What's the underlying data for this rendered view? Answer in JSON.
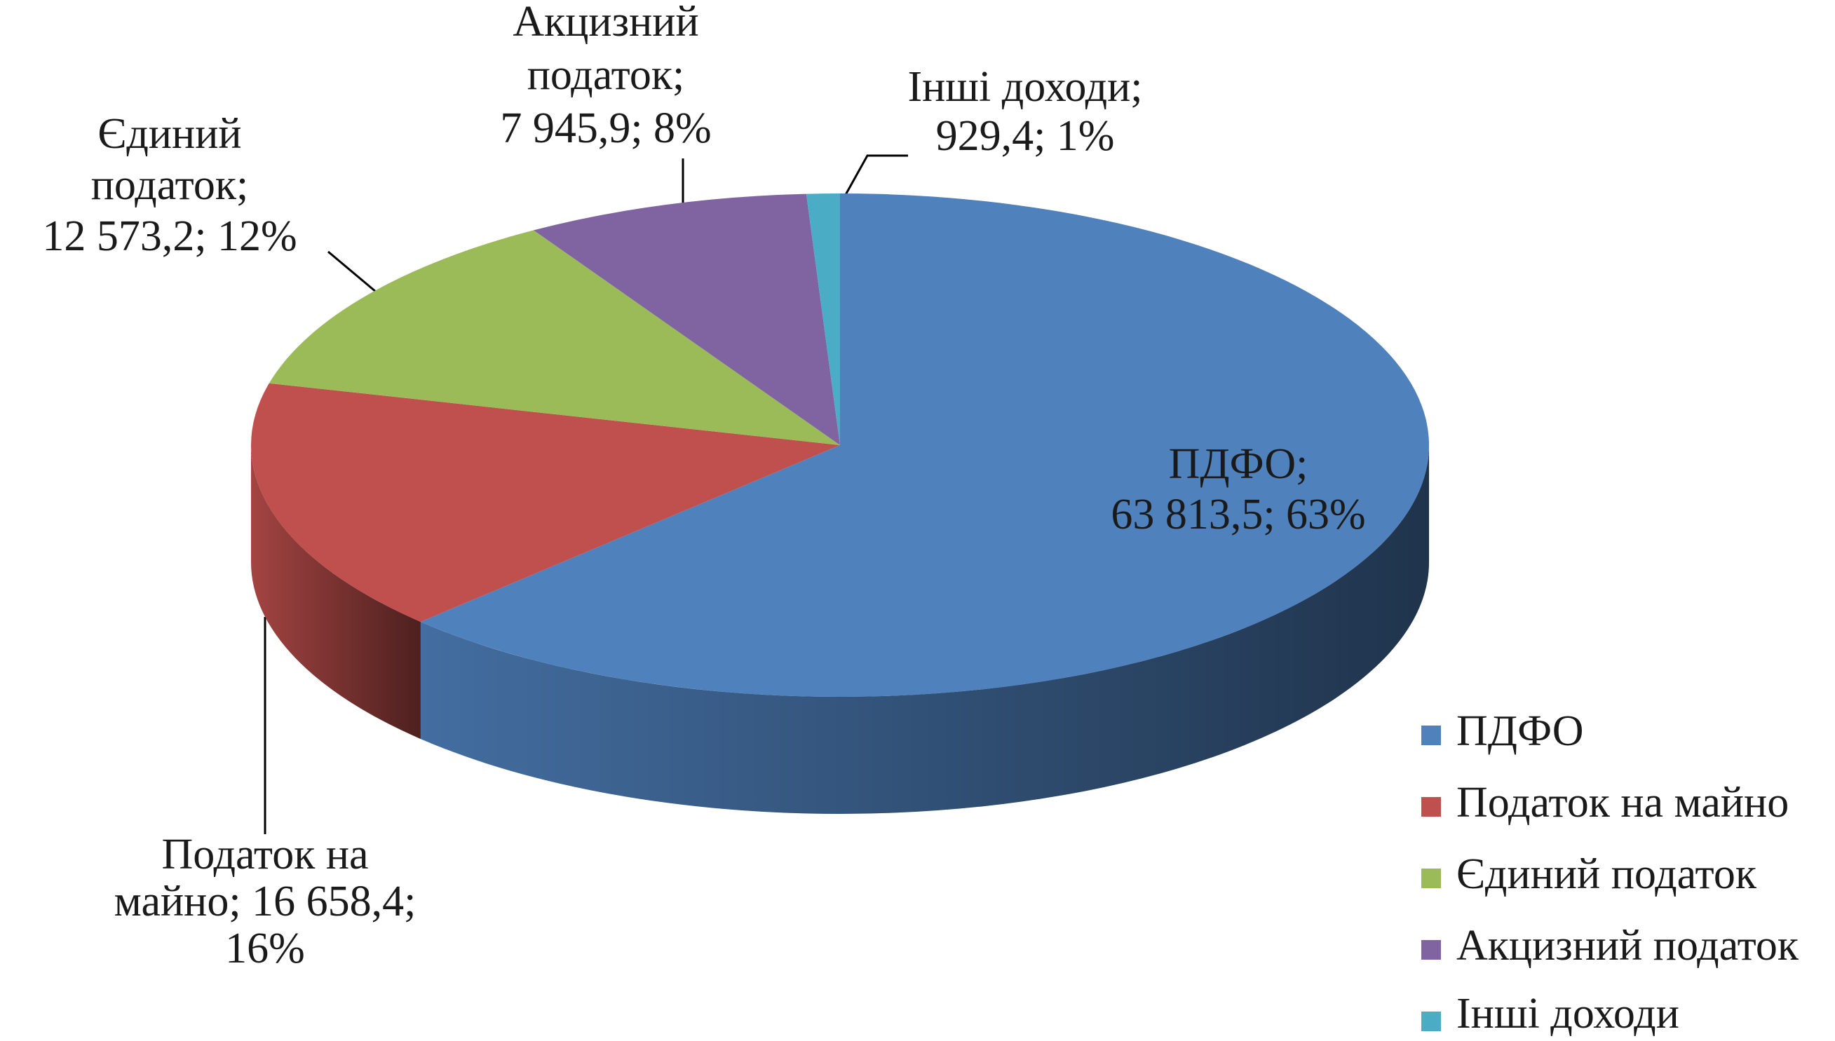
{
  "chart_data": {
    "type": "pie3d",
    "categories": [
      "ПДФО",
      "Податок на майно",
      "Єдиний податок",
      "Акцизний податок",
      "Інші доходи"
    ],
    "values": [
      63813.5,
      16658.4,
      12573.2,
      7945.9,
      929.4
    ],
    "value_labels": [
      [
        "ПДФО;",
        "63 813,5; 63%"
      ],
      [
        "Податок на",
        "майно; 16 658,4;",
        "16%"
      ],
      [
        "Єдиний",
        "податок;",
        "12 573,2; 12%"
      ],
      [
        "Акцизний",
        "податок;",
        "7 945,9; 8%"
      ],
      [
        "Інші доходи;",
        "929,4; 1%"
      ]
    ],
    "colors": [
      "#4f81bd",
      "#c0504d",
      "#9bbb59",
      "#8064a2",
      "#4bacc6"
    ],
    "legend": "right"
  }
}
